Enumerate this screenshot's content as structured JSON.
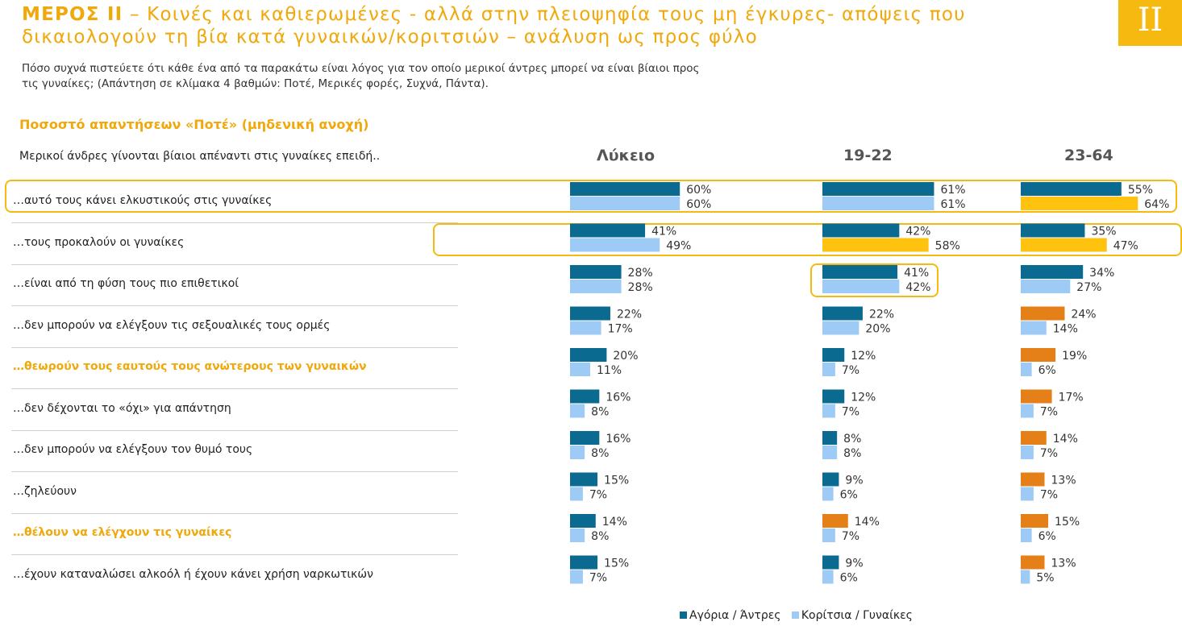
{
  "header": {
    "title_bold": "ΜΕΡΟΣ ΙΙ",
    "title_rest": " – Κοινές και καθιερωμένες - αλλά στην πλειοψηφία τους μη έγκυρες- απόψεις που δικαιολογούν τη βία κατά γυναικών/κοριτσιών – ανάλυση ως προς φύλο",
    "badge": "ΙΙ",
    "subtitle": "Πόσο συχνά πιστεύετε ότι κάθε ένα από τα παρακάτω είναι λόγος για τον οποίο μερικοί άντρες μπορεί να είναι βίαιοι προς τις γυναίκες; (Απάντηση σε κλίμακα 4 βαθμών: Ποτέ, Μερικές φορές, Συχνά, Πάντα).",
    "section_title": "Ποσοστό απαντήσεων «Ποτέ» (μηδενική ανοχή)",
    "question_header": "Μερικοί άνδρες γίνονται βίαιοι απέναντι στις γυναίκες επειδή.."
  },
  "legend": {
    "male": "Αγόρια / Άντρες",
    "female": "Κορίτσια / Γυναίκες"
  },
  "colors": {
    "male": "#0B6A8F",
    "female": "#9ECBF6",
    "yellow": "#FFC20E",
    "orange": "#E57F18",
    "accent": "#F0A80A"
  },
  "chart_data": {
    "type": "bar",
    "orientation": "horizontal",
    "unit": "%",
    "groups": [
      "Λύκειο",
      "19-22",
      "23-64"
    ],
    "categories": [
      "…αυτό τους κάνει ελκυστικούς στις γυναίκες",
      "…τους προκαλούν οι γυναίκες",
      "…είναι από τη φύση τους πιο επιθετικοί",
      "…δεν μπορούν να ελέγξουν τις σεξουαλικές τους ορμές",
      "…θεωρούν τους εαυτούς τους ανώτερους των γυναικών",
      "…δεν δέχονται το «όχι» για απάντηση",
      "…δεν μπορούν να ελέγξουν τον θυμό τους",
      "…ζηλεύουν",
      "…θέλουν να ελέγχουν τις γυναίκες",
      "…έχουν καταναλώσει αλκοόλ ή έχουν κάνει χρήση ναρκωτικών"
    ],
    "highlighted_categories": [
      4,
      8
    ],
    "series": [
      {
        "name": "Αγόρια / Άντρες",
        "group": "Λύκειο",
        "values": [
          60,
          41,
          28,
          22,
          20,
          16,
          16,
          15,
          14,
          15
        ]
      },
      {
        "name": "Κορίτσια / Γυναίκες",
        "group": "Λύκειο",
        "values": [
          60,
          49,
          28,
          17,
          11,
          8,
          8,
          7,
          8,
          7
        ]
      },
      {
        "name": "Αγόρια / Άντρες",
        "group": "19-22",
        "values": [
          61,
          42,
          41,
          22,
          12,
          12,
          8,
          9,
          14,
          9
        ],
        "color_overrides": {
          "8": "orange"
        }
      },
      {
        "name": "Κορίτσια / Γυναίκες",
        "group": "19-22",
        "values": [
          61,
          58,
          42,
          20,
          7,
          7,
          8,
          6,
          7,
          6
        ],
        "color_overrides": {
          "1": "yellow"
        }
      },
      {
        "name": "Αγόρια / Άντρες",
        "group": "23-64",
        "values": [
          55,
          35,
          34,
          24,
          19,
          17,
          14,
          13,
          15,
          13
        ],
        "color_overrides": {
          "3": "orange",
          "4": "orange",
          "5": "orange",
          "6": "orange",
          "7": "orange",
          "8": "orange",
          "9": "orange"
        }
      },
      {
        "name": "Κορίτσια / Γυναίκες",
        "group": "23-64",
        "values": [
          64,
          47,
          27,
          14,
          6,
          7,
          7,
          7,
          6,
          5
        ],
        "color_overrides": {
          "0": "yellow",
          "1": "yellow"
        }
      }
    ],
    "xlim": [
      0,
      100
    ],
    "legend_position": "bottom"
  }
}
